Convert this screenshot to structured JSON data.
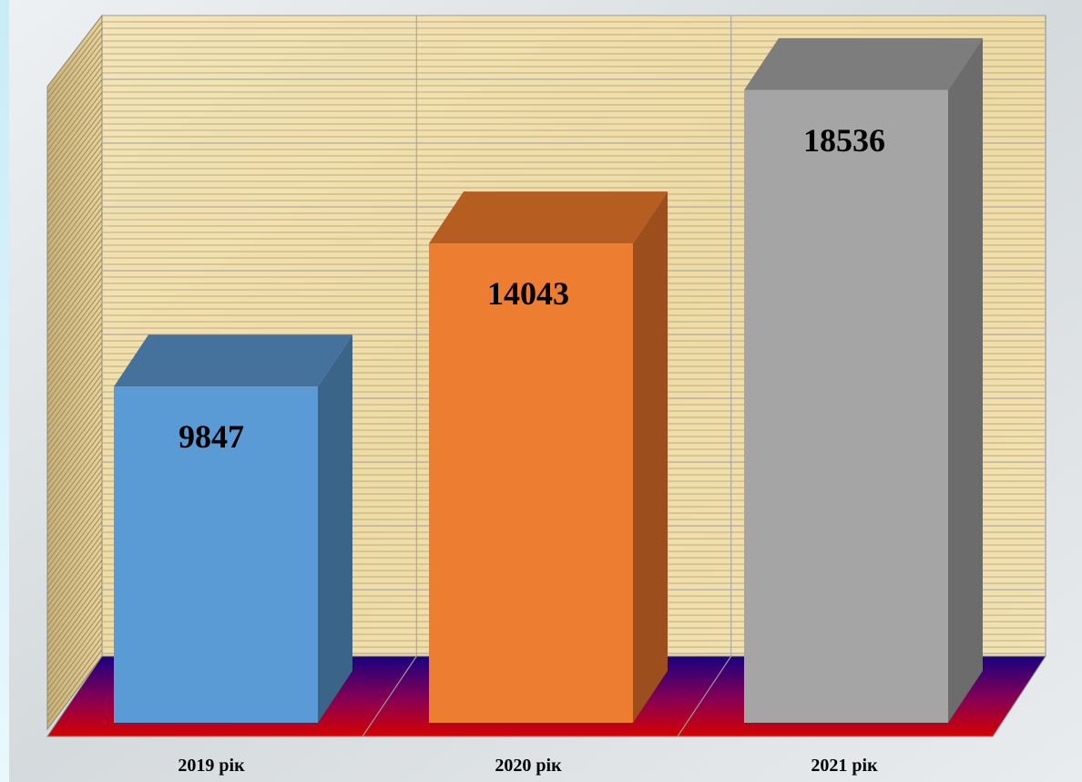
{
  "chart_data": {
    "type": "bar",
    "categories": [
      "2019 рік",
      "2020 рік",
      "2021 рік"
    ],
    "values": [
      9847,
      14043,
      18536
    ],
    "title": "",
    "xlabel": "",
    "ylabel": "",
    "ylim": [
      0,
      20000
    ],
    "grid": true,
    "legend": "none",
    "colors": {
      "bars": [
        "#5b9bd5",
        "#ed7d31",
        "#a5a5a5"
      ],
      "bars_top": [
        "#44729c",
        "#b65d21",
        "#7d7d7d"
      ],
      "bars_side": [
        "#3a6589",
        "#9c4f1c",
        "#6c6c6c"
      ],
      "wall": "#f1dfae",
      "wall_grid": "#a9a9a9",
      "floor_back": "#1a0080",
      "floor_front": "#d40000",
      "outer_frame": "#d9f2fb"
    }
  }
}
